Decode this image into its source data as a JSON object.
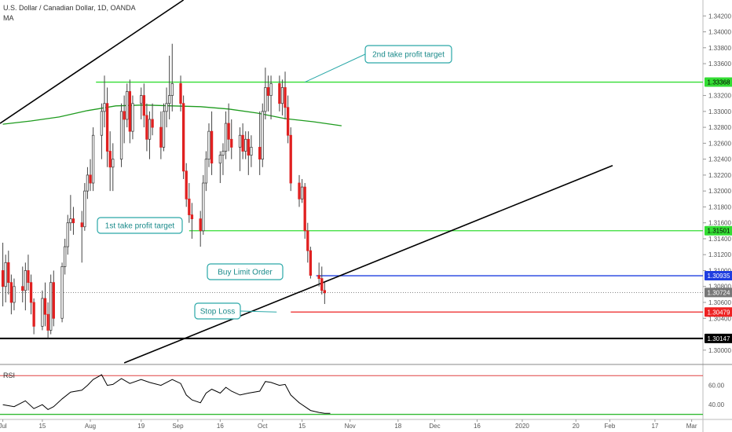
{
  "header": {
    "symbol": "U.S. Dollar / Canadian Dollar, 1D, OANDA",
    "ma_label": "MA",
    "rsi_label": "RSI"
  },
  "colors": {
    "bull": "#ffffff",
    "bear": "#e02020",
    "wick": "#444444",
    "ma": "#1e9b1e",
    "target_line": "#33dd33",
    "buy_line": "#1f3ee0",
    "stop_line": "#ee2222",
    "support_line": "#000000",
    "trend_line": "#000000",
    "rsi_line": "#000000",
    "rsi_upper": "#e04040",
    "rsi_lower": "#33bb33",
    "callout": "#2aa8a8",
    "current_price": "#777777"
  },
  "chart_data": {
    "type": "candlestick",
    "title": "U.S. Dollar / Canadian Dollar, 1D, OANDA",
    "y_axis": {
      "ticks": [
        "1.34200",
        "1.34000",
        "1.33800",
        "1.33600",
        "1.33200",
        "1.33000",
        "1.32800",
        "1.32600",
        "1.32400",
        "1.32200",
        "1.32000",
        "1.31800",
        "1.31600",
        "1.31400",
        "1.31200",
        "1.31000",
        "1.30800",
        "1.30600",
        "1.30400",
        "1.30000"
      ],
      "range": [
        1.2984,
        1.344
      ]
    },
    "x_axis": {
      "labels": [
        {
          "text": "Jul",
          "day": 0
        },
        {
          "text": "15",
          "day": 14
        },
        {
          "text": "Aug",
          "day": 31
        },
        {
          "text": "19",
          "day": 49
        },
        {
          "text": "Sep",
          "day": 62
        },
        {
          "text": "16",
          "day": 77
        },
        {
          "text": "Oct",
          "day": 92
        },
        {
          "text": "15",
          "day": 106
        },
        {
          "text": "Nov",
          "day": 123
        },
        {
          "text": "18",
          "day": 140
        },
        {
          "text": "Dec",
          "day": 153
        },
        {
          "text": "16",
          "day": 168
        },
        {
          "text": "2020",
          "day": 184
        },
        {
          "text": "20",
          "day": 203
        },
        {
          "text": "Feb",
          "day": 215
        },
        {
          "text": "17",
          "day": 231
        },
        {
          "text": "Mar",
          "day": 244
        }
      ],
      "range_days": [
        -1,
        248
      ]
    },
    "candles": [
      {
        "d": 0,
        "o": 1.31,
        "h": 1.3135,
        "l": 1.3055,
        "c": 1.308
      },
      {
        "d": 1,
        "o": 1.308,
        "h": 1.312,
        "l": 1.306,
        "c": 1.311
      },
      {
        "d": 2,
        "o": 1.311,
        "h": 1.3125,
        "l": 1.307,
        "c": 1.3085
      },
      {
        "d": 3,
        "o": 1.3085,
        "h": 1.3095,
        "l": 1.3045,
        "c": 1.306
      },
      {
        "d": 4,
        "o": 1.306,
        "h": 1.309,
        "l": 1.305,
        "c": 1.308
      },
      {
        "d": 7,
        "o": 1.308,
        "h": 1.3105,
        "l": 1.306,
        "c": 1.3075
      },
      {
        "d": 8,
        "o": 1.3075,
        "h": 1.311,
        "l": 1.305,
        "c": 1.31
      },
      {
        "d": 9,
        "o": 1.31,
        "h": 1.312,
        "l": 1.3075,
        "c": 1.3085
      },
      {
        "d": 10,
        "o": 1.3085,
        "h": 1.3095,
        "l": 1.3045,
        "c": 1.306
      },
      {
        "d": 11,
        "o": 1.306,
        "h": 1.3065,
        "l": 1.302,
        "c": 1.303
      },
      {
        "d": 14,
        "o": 1.303,
        "h": 1.3075,
        "l": 1.3025,
        "c": 1.3065
      },
      {
        "d": 15,
        "o": 1.3065,
        "h": 1.3085,
        "l": 1.303,
        "c": 1.3045
      },
      {
        "d": 16,
        "o": 1.3045,
        "h": 1.306,
        "l": 1.3015,
        "c": 1.3025
      },
      {
        "d": 17,
        "o": 1.3025,
        "h": 1.3095,
        "l": 1.302,
        "c": 1.3085
      },
      {
        "d": 18,
        "o": 1.3085,
        "h": 1.31,
        "l": 1.303,
        "c": 1.304
      },
      {
        "d": 21,
        "o": 1.304,
        "h": 1.311,
        "l": 1.3035,
        "c": 1.3105
      },
      {
        "d": 22,
        "o": 1.3105,
        "h": 1.314,
        "l": 1.3095,
        "c": 1.313
      },
      {
        "d": 23,
        "o": 1.313,
        "h": 1.317,
        "l": 1.312,
        "c": 1.316
      },
      {
        "d": 24,
        "o": 1.316,
        "h": 1.3195,
        "l": 1.315,
        "c": 1.3165
      },
      {
        "d": 25,
        "o": 1.3165,
        "h": 1.318,
        "l": 1.3145,
        "c": 1.316
      },
      {
        "d": 28,
        "o": 1.316,
        "h": 1.3175,
        "l": 1.311,
        "c": 1.3155
      },
      {
        "d": 29,
        "o": 1.3155,
        "h": 1.321,
        "l": 1.315,
        "c": 1.32
      },
      {
        "d": 30,
        "o": 1.32,
        "h": 1.323,
        "l": 1.319,
        "c": 1.322
      },
      {
        "d": 31,
        "o": 1.322,
        "h": 1.324,
        "l": 1.32,
        "c": 1.321
      },
      {
        "d": 32,
        "o": 1.321,
        "h": 1.328,
        "l": 1.32,
        "c": 1.327
      },
      {
        "d": 35,
        "o": 1.327,
        "h": 1.331,
        "l": 1.324,
        "c": 1.33
      },
      {
        "d": 36,
        "o": 1.33,
        "h": 1.3345,
        "l": 1.328,
        "c": 1.331
      },
      {
        "d": 37,
        "o": 1.331,
        "h": 1.333,
        "l": 1.323,
        "c": 1.325
      },
      {
        "d": 38,
        "o": 1.325,
        "h": 1.3275,
        "l": 1.32,
        "c": 1.323
      },
      {
        "d": 39,
        "o": 1.323,
        "h": 1.326,
        "l": 1.32,
        "c": 1.324
      },
      {
        "d": 42,
        "o": 1.324,
        "h": 1.331,
        "l": 1.323,
        "c": 1.33
      },
      {
        "d": 43,
        "o": 1.33,
        "h": 1.332,
        "l": 1.326,
        "c": 1.329
      },
      {
        "d": 44,
        "o": 1.329,
        "h": 1.3335,
        "l": 1.328,
        "c": 1.3325
      },
      {
        "d": 45,
        "o": 1.3325,
        "h": 1.334,
        "l": 1.326,
        "c": 1.3275
      },
      {
        "d": 46,
        "o": 1.3275,
        "h": 1.332,
        "l": 1.3265,
        "c": 1.331
      },
      {
        "d": 49,
        "o": 1.331,
        "h": 1.333,
        "l": 1.329,
        "c": 1.332
      },
      {
        "d": 50,
        "o": 1.332,
        "h": 1.3335,
        "l": 1.328,
        "c": 1.3295
      },
      {
        "d": 51,
        "o": 1.3295,
        "h": 1.331,
        "l": 1.325,
        "c": 1.3265
      },
      {
        "d": 52,
        "o": 1.3265,
        "h": 1.33,
        "l": 1.324,
        "c": 1.329
      },
      {
        "d": 53,
        "o": 1.329,
        "h": 1.331,
        "l": 1.327,
        "c": 1.328
      },
      {
        "d": 56,
        "o": 1.328,
        "h": 1.33,
        "l": 1.324,
        "c": 1.3255
      },
      {
        "d": 57,
        "o": 1.3255,
        "h": 1.331,
        "l": 1.325,
        "c": 1.33
      },
      {
        "d": 58,
        "o": 1.33,
        "h": 1.333,
        "l": 1.328,
        "c": 1.331
      },
      {
        "d": 59,
        "o": 1.331,
        "h": 1.337,
        "l": 1.329,
        "c": 1.332
      },
      {
        "d": 60,
        "o": 1.332,
        "h": 1.3385,
        "l": 1.33,
        "c": 1.3335
      },
      {
        "d": 63,
        "o": 1.3335,
        "h": 1.3345,
        "l": 1.33,
        "c": 1.331
      },
      {
        "d": 64,
        "o": 1.331,
        "h": 1.332,
        "l": 1.3215,
        "c": 1.3225
      },
      {
        "d": 65,
        "o": 1.3225,
        "h": 1.3235,
        "l": 1.318,
        "c": 1.319
      },
      {
        "d": 66,
        "o": 1.319,
        "h": 1.321,
        "l": 1.316,
        "c": 1.317
      },
      {
        "d": 67,
        "o": 1.317,
        "h": 1.3185,
        "l": 1.314,
        "c": 1.3165
      },
      {
        "d": 70,
        "o": 1.3165,
        "h": 1.3175,
        "l": 1.313,
        "c": 1.315
      },
      {
        "d": 71,
        "o": 1.315,
        "h": 1.322,
        "l": 1.3145,
        "c": 1.321
      },
      {
        "d": 72,
        "o": 1.321,
        "h": 1.325,
        "l": 1.32,
        "c": 1.324
      },
      {
        "d": 73,
        "o": 1.324,
        "h": 1.3285,
        "l": 1.323,
        "c": 1.3275
      },
      {
        "d": 74,
        "o": 1.3275,
        "h": 1.33,
        "l": 1.322,
        "c": 1.3235
      },
      {
        "d": 77,
        "o": 1.3235,
        "h": 1.325,
        "l": 1.321,
        "c": 1.3245
      },
      {
        "d": 78,
        "o": 1.3245,
        "h": 1.326,
        "l": 1.322,
        "c": 1.325
      },
      {
        "d": 79,
        "o": 1.325,
        "h": 1.33,
        "l": 1.324,
        "c": 1.3285
      },
      {
        "d": 80,
        "o": 1.3285,
        "h": 1.331,
        "l": 1.325,
        "c": 1.3265
      },
      {
        "d": 81,
        "o": 1.3265,
        "h": 1.329,
        "l": 1.324,
        "c": 1.3255
      },
      {
        "d": 84,
        "o": 1.3255,
        "h": 1.328,
        "l": 1.3225,
        "c": 1.327
      },
      {
        "d": 85,
        "o": 1.327,
        "h": 1.3285,
        "l": 1.324,
        "c": 1.325
      },
      {
        "d": 86,
        "o": 1.325,
        "h": 1.3275,
        "l": 1.324,
        "c": 1.3265
      },
      {
        "d": 87,
        "o": 1.3265,
        "h": 1.3275,
        "l": 1.322,
        "c": 1.3245
      },
      {
        "d": 88,
        "o": 1.3245,
        "h": 1.327,
        "l": 1.323,
        "c": 1.3255
      },
      {
        "d": 91,
        "o": 1.3255,
        "h": 1.33,
        "l": 1.322,
        "c": 1.324
      },
      {
        "d": 92,
        "o": 1.324,
        "h": 1.331,
        "l": 1.323,
        "c": 1.33
      },
      {
        "d": 93,
        "o": 1.33,
        "h": 1.3355,
        "l": 1.329,
        "c": 1.333
      },
      {
        "d": 94,
        "o": 1.333,
        "h": 1.3345,
        "l": 1.33,
        "c": 1.332
      },
      {
        "d": 95,
        "o": 1.332,
        "h": 1.3345,
        "l": 1.329,
        "c": 1.3335
      },
      {
        "d": 98,
        "o": 1.3335,
        "h": 1.3345,
        "l": 1.33,
        "c": 1.331
      },
      {
        "d": 99,
        "o": 1.331,
        "h": 1.334,
        "l": 1.3295,
        "c": 1.333
      },
      {
        "d": 100,
        "o": 1.333,
        "h": 1.335,
        "l": 1.329,
        "c": 1.3305
      },
      {
        "d": 101,
        "o": 1.3305,
        "h": 1.332,
        "l": 1.326,
        "c": 1.327
      },
      {
        "d": 102,
        "o": 1.327,
        "h": 1.328,
        "l": 1.32,
        "c": 1.321
      },
      {
        "d": 105,
        "o": 1.321,
        "h": 1.322,
        "l": 1.318,
        "c": 1.319
      },
      {
        "d": 106,
        "o": 1.319,
        "h": 1.3215,
        "l": 1.3185,
        "c": 1.3205
      },
      {
        "d": 107,
        "o": 1.3205,
        "h": 1.321,
        "l": 1.314,
        "c": 1.315
      },
      {
        "d": 108,
        "o": 1.315,
        "h": 1.316,
        "l": 1.311,
        "c": 1.3125
      },
      {
        "d": 109,
        "o": 1.3125,
        "h": 1.313,
        "l": 1.309,
        "c": 1.3094
      },
      {
        "d": 112,
        "o": 1.3094,
        "h": 1.311,
        "l": 1.308,
        "c": 1.309
      },
      {
        "d": 113,
        "o": 1.309,
        "h": 1.3105,
        "l": 1.307,
        "c": 1.3075
      },
      {
        "d": 114,
        "o": 1.3075,
        "h": 1.3085,
        "l": 1.3058,
        "c": 1.3072
      }
    ],
    "moving_average": [
      {
        "d": 0,
        "v": 1.3284
      },
      {
        "d": 10,
        "v": 1.3288
      },
      {
        "d": 20,
        "v": 1.3293
      },
      {
        "d": 30,
        "v": 1.3301
      },
      {
        "d": 40,
        "v": 1.3307
      },
      {
        "d": 50,
        "v": 1.3308
      },
      {
        "d": 60,
        "v": 1.3307
      },
      {
        "d": 70,
        "v": 1.3306
      },
      {
        "d": 80,
        "v": 1.3303
      },
      {
        "d": 90,
        "v": 1.3298
      },
      {
        "d": 100,
        "v": 1.3291
      },
      {
        "d": 110,
        "v": 1.3287
      },
      {
        "d": 120,
        "v": 1.3282
      }
    ],
    "horizontal_levels": [
      {
        "name": "2nd take profit target",
        "price": 1.33368,
        "label": "1.33368",
        "color": "#33dd33",
        "start_day": 33
      },
      {
        "name": "1st take profit target",
        "price": 1.31501,
        "label": "1.31501",
        "color": "#33dd33",
        "start_day": 66
      },
      {
        "name": "Buy Limit Order",
        "price": 1.30935,
        "label": "1.30935",
        "color": "#1f3ee0",
        "start_day": 111
      },
      {
        "name": "Stop Loss",
        "price": 1.30479,
        "label": "1.30479",
        "color": "#ee2222",
        "start_day": 102
      },
      {
        "name": "support",
        "price": 1.30147,
        "label": "1.30147",
        "color": "#000000",
        "start_day": -1
      }
    ],
    "current_price": {
      "price": 1.30724,
      "label": "1.30724"
    },
    "trend_lines": [
      {
        "name": "upper-trendline",
        "d1": -1,
        "p1": 1.3285,
        "d2": 64,
        "p2": 1.344
      },
      {
        "name": "rising-trendline",
        "d1": 43,
        "p1": 1.2984,
        "d2": 216,
        "p2": 1.3232
      }
    ],
    "annotations": [
      {
        "text": "2nd take profit target",
        "pointer_day": 107,
        "pointer_price": 1.33368
      },
      {
        "text": "1st take profit target",
        "pointer_day": 56,
        "pointer_price": 1.31501
      },
      {
        "text": "Buy Limit Order",
        "pointer_day": 99,
        "pointer_price": 1.30935
      },
      {
        "text": "Stop Loss",
        "pointer_day": 97,
        "pointer_price": 1.30479
      }
    ],
    "rsi": {
      "label": "RSI",
      "ticks": [
        "60.00",
        "40.00"
      ],
      "range": [
        28,
        80
      ],
      "upper": 70,
      "lower": 30,
      "values": [
        {
          "d": 0,
          "v": 40
        },
        {
          "d": 4,
          "v": 38
        },
        {
          "d": 8,
          "v": 44
        },
        {
          "d": 11,
          "v": 36
        },
        {
          "d": 14,
          "v": 40
        },
        {
          "d": 16,
          "v": 35
        },
        {
          "d": 18,
          "v": 38
        },
        {
          "d": 21,
          "v": 46
        },
        {
          "d": 24,
          "v": 53
        },
        {
          "d": 28,
          "v": 55
        },
        {
          "d": 30,
          "v": 60
        },
        {
          "d": 32,
          "v": 66
        },
        {
          "d": 35,
          "v": 71
        },
        {
          "d": 37,
          "v": 60
        },
        {
          "d": 39,
          "v": 61
        },
        {
          "d": 42,
          "v": 67
        },
        {
          "d": 45,
          "v": 62
        },
        {
          "d": 49,
          "v": 66
        },
        {
          "d": 52,
          "v": 63
        },
        {
          "d": 56,
          "v": 60
        },
        {
          "d": 60,
          "v": 66
        },
        {
          "d": 63,
          "v": 62
        },
        {
          "d": 65,
          "v": 50
        },
        {
          "d": 67,
          "v": 45
        },
        {
          "d": 70,
          "v": 42
        },
        {
          "d": 72,
          "v": 52
        },
        {
          "d": 74,
          "v": 56
        },
        {
          "d": 77,
          "v": 52
        },
        {
          "d": 79,
          "v": 58
        },
        {
          "d": 81,
          "v": 54
        },
        {
          "d": 84,
          "v": 50
        },
        {
          "d": 87,
          "v": 52
        },
        {
          "d": 91,
          "v": 54
        },
        {
          "d": 93,
          "v": 64
        },
        {
          "d": 95,
          "v": 63
        },
        {
          "d": 98,
          "v": 60
        },
        {
          "d": 100,
          "v": 61
        },
        {
          "d": 102,
          "v": 50
        },
        {
          "d": 105,
          "v": 42
        },
        {
          "d": 107,
          "v": 38
        },
        {
          "d": 109,
          "v": 34
        },
        {
          "d": 112,
          "v": 32
        },
        {
          "d": 114,
          "v": 31
        },
        {
          "d": 116,
          "v": 31
        }
      ]
    },
    "grid": false,
    "legend": "none"
  }
}
